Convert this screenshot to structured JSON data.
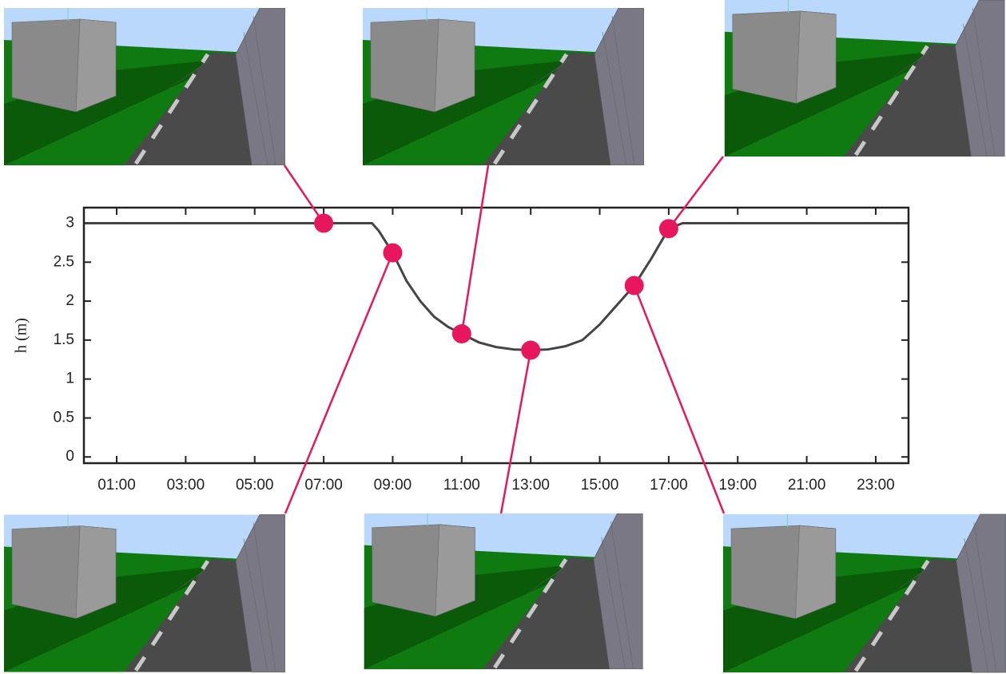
{
  "chart_data": {
    "type": "line",
    "y_label": "h (m)",
    "x": [
      0.05,
      8.4,
      8.6,
      9,
      9.4,
      9.8,
      10.2,
      10.6,
      11,
      11.5,
      12,
      12.5,
      13,
      13.5,
      14,
      14.5,
      15,
      15.5,
      16,
      16.5,
      17,
      17.4,
      17.6,
      23.95
    ],
    "values": [
      3,
      3,
      2.9,
      2.62,
      2.26,
      2.0,
      1.8,
      1.67,
      1.58,
      1.47,
      1.41,
      1.38,
      1.37,
      1.38,
      1.42,
      1.5,
      1.7,
      1.95,
      2.2,
      2.55,
      2.93,
      3,
      3,
      3
    ],
    "color": "#444444",
    "markers": {
      "x": [
        7,
        9,
        11,
        13,
        16,
        17
      ],
      "values": [
        3,
        2.62,
        1.58,
        1.37,
        2.2,
        2.93
      ],
      "color": "#e8175d"
    },
    "xlim": [
      0.05,
      23.95
    ],
    "ylim": [
      -0.08,
      3.2
    ],
    "xticks": [
      {
        "value": 1,
        "label": "01:00"
      },
      {
        "value": 3,
        "label": "03:00"
      },
      {
        "value": 5,
        "label": "05:00"
      },
      {
        "value": 7,
        "label": "07:00"
      },
      {
        "value": 9,
        "label": "09:00"
      },
      {
        "value": 11,
        "label": "11:00"
      },
      {
        "value": 13,
        "label": "13:00"
      },
      {
        "value": 15,
        "label": "15:00"
      },
      {
        "value": 17,
        "label": "17:00"
      },
      {
        "value": 19,
        "label": "19:00"
      },
      {
        "value": 21,
        "label": "21:00"
      },
      {
        "value": 23,
        "label": "23:00"
      }
    ],
    "yticks": [
      0,
      0.5,
      1,
      1.5,
      2,
      2.5,
      3
    ],
    "grid": false
  }
}
